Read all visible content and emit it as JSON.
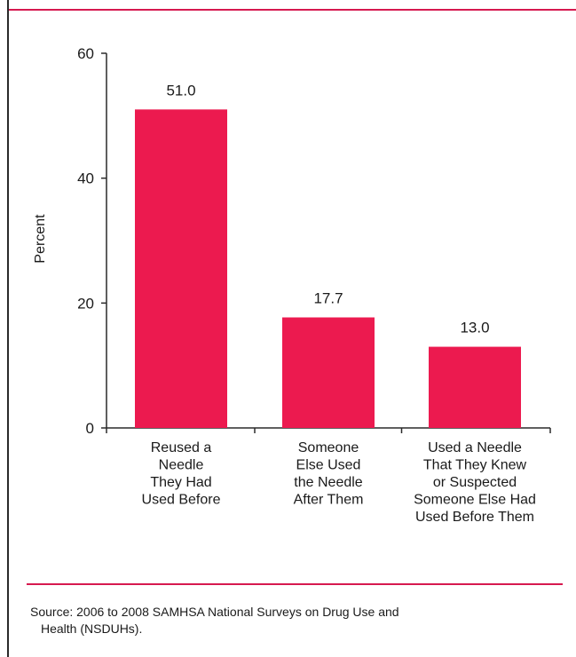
{
  "chart_data": {
    "type": "bar",
    "categories": [
      [
        "Reused a",
        "Needle",
        "They Had",
        "Used Before"
      ],
      [
        "Someone",
        "Else Used",
        "the Needle",
        "After Them"
      ],
      [
        "Used a Needle",
        "That They Knew",
        "or Suspected",
        "Someone Else Had",
        "Used Before Them"
      ]
    ],
    "values": [
      51.0,
      17.7,
      13.0
    ],
    "value_labels": [
      "51.0",
      "17.7",
      "13.0"
    ],
    "ylabel": "Percent",
    "ylim": [
      0,
      60
    ],
    "yticks": [
      0,
      20,
      40,
      60
    ],
    "bar_color": "#ec1a4f",
    "grid": false,
    "title": ""
  },
  "source": {
    "line1": "Source: 2006 to 2008 SAMHSA National Surveys on Drug Use and",
    "line2": "Health (NSDUHs)."
  },
  "colors": {
    "accent_rule": "#d6194f",
    "frame_border": "#2a2a2a"
  }
}
